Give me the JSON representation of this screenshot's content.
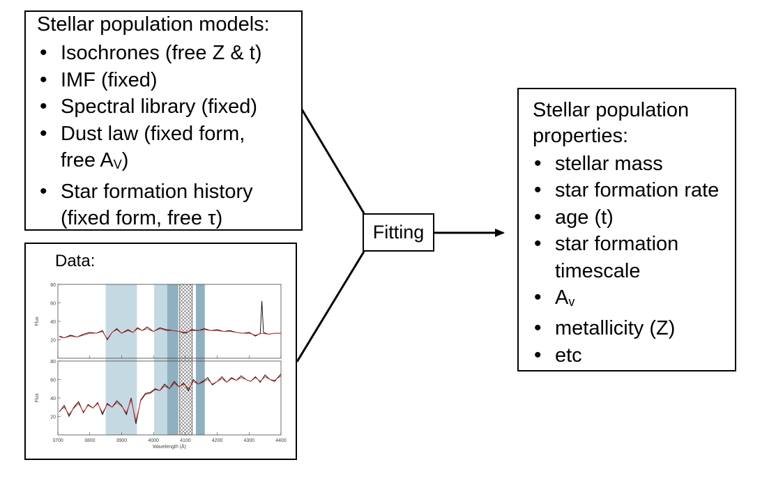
{
  "models": {
    "title": "Stellar population models:",
    "items": [
      {
        "text": "Isochrones (free Z & t)"
      },
      {
        "text": "IMF (fixed)"
      },
      {
        "text": "Spectral library (fixed)"
      },
      {
        "text": "Dust law (fixed form,",
        "cont_main": "free A",
        "cont_sub": "V",
        "cont_end": ")"
      },
      {
        "text": "Star formation history",
        "cont_main": "(fixed form, free τ)"
      }
    ]
  },
  "data_panel": {
    "title": "Data:",
    "chart_data": {
      "type": "line",
      "xlabel": "Wavelength (Å)",
      "ylabel": "Flux",
      "xlim": [
        3700,
        4400
      ],
      "x_ticks": [
        "3700",
        "3800",
        "3900",
        "4000",
        "4100",
        "4200",
        "4300",
        "4400"
      ],
      "panels": [
        {
          "ylim": [
            0,
            80
          ],
          "y_ticks": [
            "20",
            "40",
            "60",
            "80"
          ],
          "series": [
            {
              "color": "#000000",
              "x": [
                3705,
                3720,
                3740,
                3760,
                3780,
                3800,
                3820,
                3840,
                3855,
                3870,
                3885,
                3900,
                3920,
                3935,
                3950,
                3965,
                3980,
                4000,
                4020,
                4040,
                4060,
                4080,
                4100,
                4120,
                4140,
                4160,
                4180,
                4200,
                4220,
                4240,
                4260,
                4280,
                4300,
                4320,
                4335,
                4340,
                4345,
                4360,
                4380,
                4400
              ],
              "y": [
                24,
                22,
                25,
                23,
                26,
                28,
                27,
                30,
                20,
                28,
                32,
                27,
                31,
                28,
                33,
                30,
                34,
                29,
                33,
                31,
                30,
                29,
                27,
                31,
                30,
                32,
                30,
                31,
                29,
                30,
                28,
                27,
                28,
                24,
                27,
                62,
                28,
                26,
                27,
                27
              ]
            },
            {
              "color": "#d62728",
              "x": [
                3705,
                3720,
                3740,
                3760,
                3780,
                3800,
                3820,
                3840,
                3855,
                3870,
                3885,
                3900,
                3920,
                3935,
                3950,
                3965,
                3980,
                4000,
                4020,
                4040,
                4060,
                4080,
                4100,
                4120,
                4140,
                4160,
                4180,
                4200,
                4220,
                4240,
                4260,
                4280,
                4300,
                4320,
                4340,
                4360,
                4380,
                4400
              ],
              "y": [
                23,
                22,
                24,
                23,
                25,
                27,
                27,
                29,
                21,
                28,
                31,
                27,
                30,
                28,
                32,
                30,
                32,
                29,
                32,
                30,
                30,
                29,
                28,
                30,
                30,
                31,
                30,
                30,
                29,
                29,
                28,
                27,
                27,
                25,
                27,
                26,
                27,
                27
              ]
            }
          ]
        },
        {
          "ylim": [
            0,
            80
          ],
          "y_ticks": [
            "20",
            "40",
            "60",
            "80"
          ],
          "series": [
            {
              "color": "#000000",
              "x": [
                3705,
                3720,
                3735,
                3750,
                3765,
                3780,
                3795,
                3810,
                3825,
                3840,
                3855,
                3870,
                3885,
                3900,
                3915,
                3930,
                3945,
                3960,
                3975,
                3990,
                4005,
                4020,
                4035,
                4050,
                4065,
                4080,
                4095,
                4110,
                4125,
                4140,
                4155,
                4170,
                4185,
                4200,
                4215,
                4230,
                4245,
                4260,
                4275,
                4290,
                4305,
                4320,
                4335,
                4350,
                4365,
                4380,
                4400
              ],
              "y": [
                25,
                32,
                20,
                30,
                36,
                24,
                33,
                29,
                35,
                22,
                34,
                30,
                37,
                32,
                22,
                40,
                12,
                38,
                45,
                46,
                50,
                48,
                55,
                50,
                58,
                52,
                56,
                48,
                60,
                55,
                58,
                62,
                54,
                58,
                63,
                57,
                62,
                59,
                64,
                60,
                58,
                63,
                57,
                65,
                60,
                58,
                66
              ]
            },
            {
              "color": "#d62728",
              "x": [
                3705,
                3720,
                3735,
                3750,
                3765,
                3780,
                3795,
                3810,
                3825,
                3840,
                3855,
                3870,
                3885,
                3900,
                3915,
                3930,
                3945,
                3960,
                3975,
                3990,
                4005,
                4020,
                4035,
                4050,
                4065,
                4080,
                4095,
                4110,
                4125,
                4140,
                4155,
                4170,
                4185,
                4200,
                4215,
                4230,
                4245,
                4260,
                4275,
                4290,
                4305,
                4320,
                4335,
                4350,
                4365,
                4380,
                4400
              ],
              "y": [
                26,
                30,
                22,
                29,
                34,
                25,
                32,
                29,
                34,
                24,
                33,
                30,
                35,
                31,
                24,
                38,
                15,
                37,
                44,
                45,
                49,
                48,
                53,
                50,
                56,
                52,
                55,
                50,
                58,
                55,
                57,
                60,
                55,
                58,
                61,
                57,
                61,
                59,
                62,
                60,
                58,
                62,
                58,
                63,
                60,
                59,
                64
              ]
            }
          ]
        }
      ],
      "bands": [
        {
          "x": [
            3850,
            3948
          ],
          "style": "light"
        },
        {
          "x": [
            4002,
            4043
          ],
          "style": "light"
        },
        {
          "x": [
            4043,
            4078
          ],
          "style": "dark"
        },
        {
          "x": [
            4082,
            4122
          ],
          "style": "hatched"
        },
        {
          "x": [
            4133,
            4161
          ],
          "style": "dark"
        }
      ]
    }
  },
  "fitting": {
    "label": "Fitting"
  },
  "properties": {
    "title": "Stellar population properties:",
    "items": [
      {
        "text": "stellar mass"
      },
      {
        "text": "star formation rate"
      },
      {
        "text": "age (t)"
      },
      {
        "text": "star formation",
        "cont_main": "timescale"
      },
      {
        "text": "A",
        "sub": "v"
      },
      {
        "text": "metallicity (Z)"
      },
      {
        "text": "etc"
      }
    ]
  }
}
